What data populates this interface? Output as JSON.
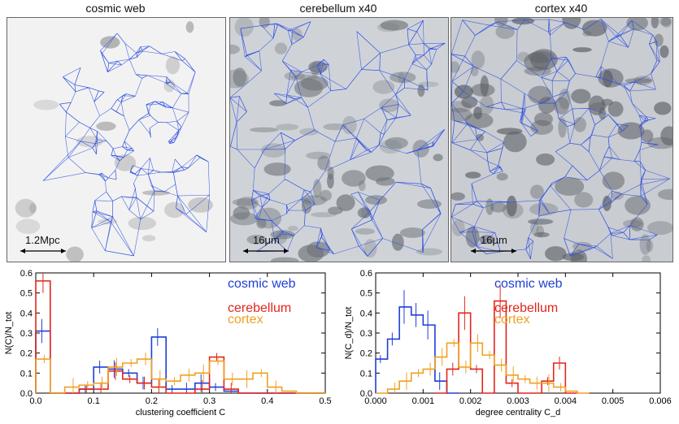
{
  "panels": [
    {
      "title": "cosmic web",
      "scale": "1.2Mpc",
      "bg": "#f2f2f2",
      "tone": "#9a9a9a"
    },
    {
      "title": "cerebellum x40",
      "scale": "16μm",
      "bg": "#cfd3d8",
      "tone": "#6e7378"
    },
    {
      "title": "cortex x40",
      "scale": "16μm",
      "bg": "#c9ccd1",
      "tone": "#5d6167"
    }
  ],
  "colors": {
    "cosmic": "#1f3fd6",
    "cerebellum": "#e0261d",
    "cortex": "#f0a020",
    "network": "#2f4fe0"
  },
  "chart_data": [
    {
      "type": "histogram",
      "xlabel": "clustering coefficient C",
      "ylabel": "N(C)/N_tot",
      "xlim": [
        0,
        0.5
      ],
      "ylim": [
        0,
        0.6
      ],
      "xticks": [
        "0.0",
        "0.1",
        "0.2",
        "0.3",
        "0.4",
        "0.5"
      ],
      "yticks": [
        "0.0",
        "0.1",
        "0.2",
        "0.3",
        "0.4",
        "0.5",
        "0.6"
      ],
      "bin_width": 0.025,
      "series": [
        {
          "name": "cosmic web",
          "color": "#1f3fd6",
          "x": [
            0.0,
            0.025,
            0.05,
            0.075,
            0.1,
            0.125,
            0.15,
            0.175,
            0.2,
            0.225,
            0.25,
            0.275,
            0.3,
            0.325,
            0.35,
            0.375,
            0.4,
            0.425,
            0.45,
            0.475
          ],
          "values": [
            0.31,
            0.0,
            0.0,
            0.02,
            0.13,
            0.12,
            0.1,
            0.05,
            0.28,
            0.02,
            0.02,
            0.05,
            0.03,
            0.01,
            0.0,
            0.0,
            0.0,
            0.0,
            0.0,
            0.0
          ]
        },
        {
          "name": "cerebellum",
          "color": "#e0261d",
          "x": [
            0.0,
            0.025,
            0.05,
            0.075,
            0.1,
            0.125,
            0.15,
            0.175,
            0.2,
            0.225,
            0.25,
            0.275,
            0.3,
            0.325,
            0.35,
            0.375,
            0.4,
            0.425,
            0.45,
            0.475
          ],
          "values": [
            0.56,
            0.0,
            0.0,
            0.02,
            0.02,
            0.11,
            0.07,
            0.05,
            0.03,
            0.0,
            0.0,
            0.02,
            0.18,
            0.02,
            0.0,
            0.0,
            0.0,
            0.0,
            0.0,
            0.0
          ]
        },
        {
          "name": "cortex",
          "color": "#f0a020",
          "x": [
            0.0,
            0.025,
            0.05,
            0.075,
            0.1,
            0.125,
            0.15,
            0.175,
            0.2,
            0.225,
            0.25,
            0.275,
            0.3,
            0.325,
            0.35,
            0.375,
            0.4,
            0.425,
            0.45,
            0.475
          ],
          "values": [
            0.17,
            0.0,
            0.03,
            0.04,
            0.05,
            0.13,
            0.15,
            0.17,
            0.07,
            0.06,
            0.09,
            0.1,
            0.16,
            0.07,
            0.07,
            0.1,
            0.03,
            0.01,
            0.0,
            0.0
          ]
        }
      ],
      "legend": [
        "cosmic web",
        "cerebellum",
        "cortex"
      ]
    },
    {
      "type": "histogram",
      "xlabel": "degree centrality C_d",
      "ylabel": "N(C_d)/N_tot",
      "xlim": [
        0,
        0.006
      ],
      "ylim": [
        0,
        0.6
      ],
      "xticks": [
        "0.000",
        "0.001",
        "0.002",
        "0.003",
        "0.004",
        "0.005",
        "0.006"
      ],
      "yticks": [
        "0.0",
        "0.1",
        "0.2",
        "0.3",
        "0.4",
        "0.5",
        "0.6"
      ],
      "bin_width": 0.00025,
      "series": [
        {
          "name": "cosmic web",
          "color": "#1f3fd6",
          "x": [
            0.0,
            0.00025,
            0.0005,
            0.00075,
            0.001,
            0.00125,
            0.0015
          ],
          "values": [
            0.17,
            0.27,
            0.43,
            0.39,
            0.34,
            0.06,
            0.0
          ]
        },
        {
          "name": "cerebellum",
          "color": "#e0261d",
          "x": [
            0.00125,
            0.0015,
            0.00175,
            0.002,
            0.00225,
            0.0025,
            0.00275,
            0.003,
            0.00325,
            0.0035,
            0.00375,
            0.004
          ],
          "values": [
            0.0,
            0.12,
            0.4,
            0.12,
            0.0,
            0.46,
            0.05,
            0.0,
            0.0,
            0.06,
            0.15,
            0.0
          ]
        },
        {
          "name": "cortex",
          "color": "#f0a020",
          "x": [
            0.0,
            0.00025,
            0.0005,
            0.00075,
            0.001,
            0.00125,
            0.0015,
            0.00175,
            0.002,
            0.00225,
            0.0025,
            0.00275,
            0.003,
            0.00325,
            0.0035,
            0.00375,
            0.004,
            0.00425
          ],
          "values": [
            0.0,
            0.02,
            0.06,
            0.1,
            0.12,
            0.18,
            0.25,
            0.13,
            0.25,
            0.19,
            0.14,
            0.09,
            0.07,
            0.05,
            0.05,
            0.03,
            0.01,
            0.0
          ]
        }
      ],
      "legend": [
        "cosmic web",
        "cerebellum",
        "cortex"
      ]
    }
  ]
}
